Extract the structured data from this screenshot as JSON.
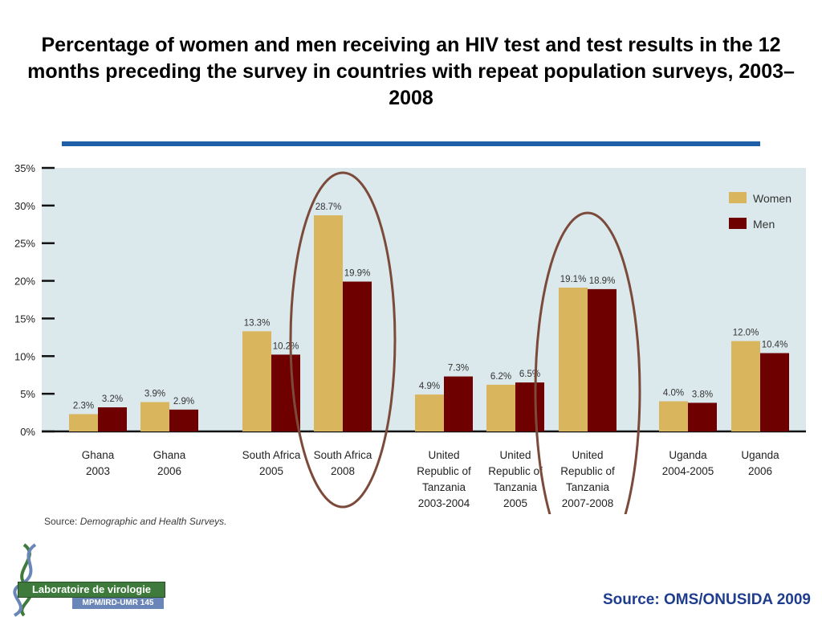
{
  "title": "Percentage of women and men receiving an HIV test and test results in the 12 months preceding the survey in countries with repeat population surveys, 2003–2008",
  "slide_source": "Source: OMS/ONUSIDA 2009",
  "chart_source": {
    "prefix": "Source:",
    "text": "Demographic and Health Surveys."
  },
  "logo": {
    "name": "Laboratoire de virologie",
    "unit": "MPM/IRD-UMR 145"
  },
  "colors": {
    "women": "#D9B65E",
    "men": "#6E0000",
    "plot_bg": "#DCE9EC",
    "highlight_ring": "#7B4A3A",
    "title_rule": "#1F5FA8",
    "slide_source": "#1F3D8F"
  },
  "chart_data": {
    "type": "bar",
    "ylim": [
      0,
      35
    ],
    "yticks": [
      "0%",
      "5%",
      "10%",
      "15%",
      "20%",
      "25%",
      "30%",
      "35%"
    ],
    "legend_position": "top-right",
    "categories": [
      "Ghana 2003",
      "Ghana 2006",
      "South Africa 2005",
      "South Africa 2008",
      "United Republic of Tanzania 2003-2004",
      "United Republic of Tanzania 2005",
      "United Republic of Tanzania 2007-2008",
      "Uganda 2004-2005",
      "Uganda 2006"
    ],
    "category_lines": [
      [
        "Ghana",
        "2003"
      ],
      [
        "Ghana",
        "2006"
      ],
      [
        "South Africa",
        "2005"
      ],
      [
        "South Africa",
        "2008"
      ],
      [
        "United",
        "Republic of",
        "Tanzania",
        "2003-2004"
      ],
      [
        "United",
        "Republic of",
        "Tanzania",
        "2005"
      ],
      [
        "United",
        "Republic of",
        "Tanzania",
        "2007-2008"
      ],
      [
        "Uganda",
        "2004-2005"
      ],
      [
        "Uganda",
        "2006"
      ]
    ],
    "series": [
      {
        "name": "Women",
        "values": [
          2.3,
          3.9,
          13.3,
          28.7,
          4.9,
          6.2,
          19.1,
          4.0,
          12.0
        ],
        "labels": [
          "2.3%",
          "3.9%",
          "13.3%",
          "28.7%",
          "4.9%",
          "6.2%",
          "19.1%",
          "4.0%",
          "12.0%"
        ]
      },
      {
        "name": "Men",
        "values": [
          3.2,
          2.9,
          10.2,
          19.9,
          7.3,
          6.5,
          18.9,
          3.8,
          10.4
        ],
        "labels": [
          "3.2%",
          "2.9%",
          "10.2%",
          "19.9%",
          "7.3%",
          "6.5%",
          "18.9%",
          "3.8%",
          "10.4%"
        ]
      }
    ],
    "highlighted": [
      "South Africa 2008",
      "United Republic of Tanzania 2007-2008"
    ]
  }
}
